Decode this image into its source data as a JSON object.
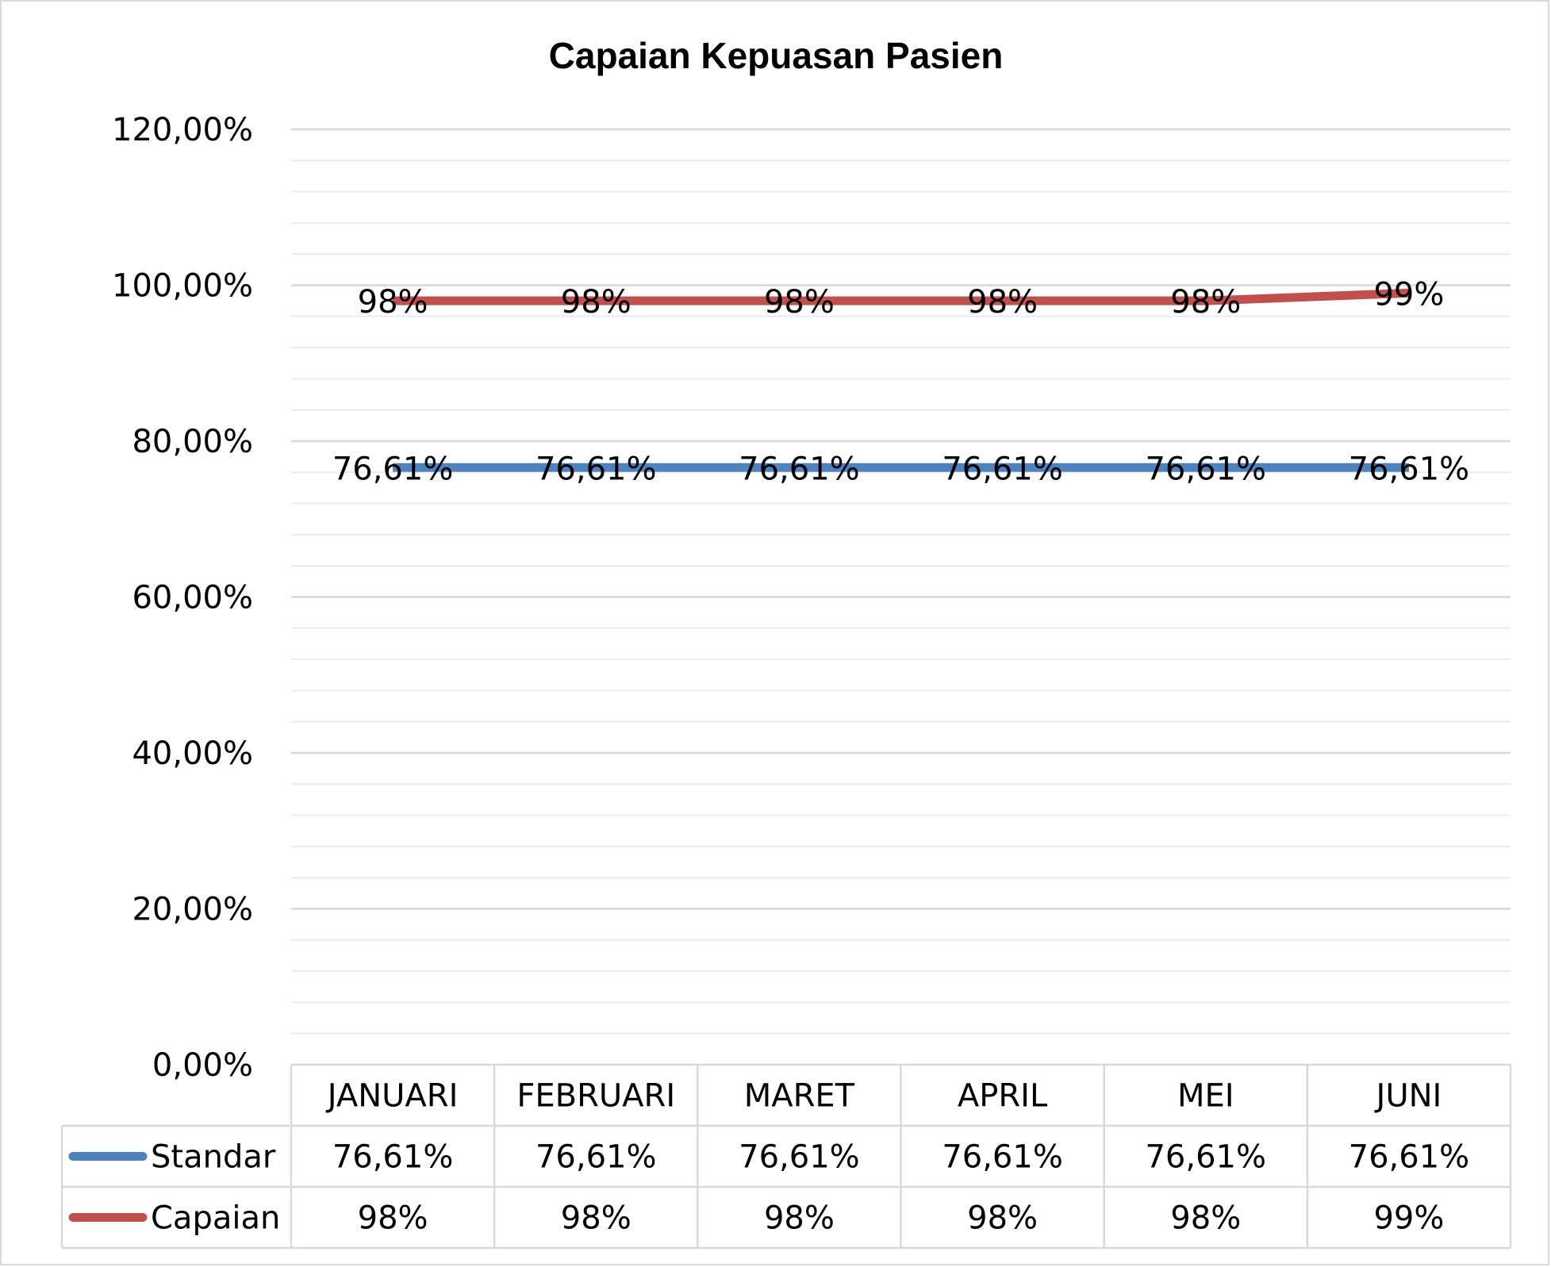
{
  "chart_data": {
    "type": "line",
    "title": "Capaian Kepuasan Pasien",
    "categories": [
      "JANUARI",
      "FEBRUARI",
      "MARET",
      "APRIL",
      "MEI",
      "JUNI"
    ],
    "ylim": [
      0,
      120
    ],
    "yticks": [
      "0,00%",
      "20,00%",
      "40,00%",
      "60,00%",
      "80,00%",
      "100,00%",
      "120,00%"
    ],
    "grid": true,
    "legend": "data-table",
    "series": [
      {
        "name": "Standar",
        "color": "#4f81bd",
        "values": [
          76.61,
          76.61,
          76.61,
          76.61,
          76.61,
          76.61
        ],
        "labels": [
          "76,61%",
          "76,61%",
          "76,61%",
          "76,61%",
          "76,61%",
          "76,61%"
        ]
      },
      {
        "name": "Capaian",
        "color": "#c0504d",
        "values": [
          98,
          98,
          98,
          98,
          98,
          99
        ],
        "labels": [
          "98%",
          "98%",
          "98%",
          "98%",
          "98%",
          "99%"
        ]
      }
    ]
  }
}
